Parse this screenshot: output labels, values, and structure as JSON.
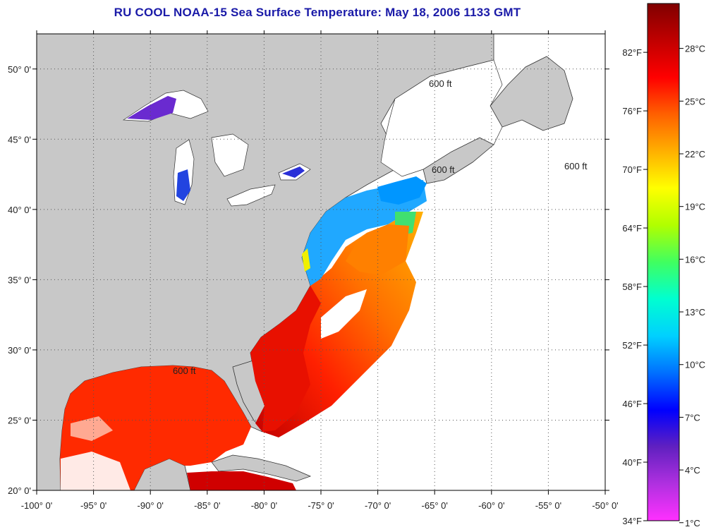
{
  "title": "RU COOL  NOAA-15  Sea Surface Temperature:  May 18, 2006 1133 GMT",
  "map": {
    "lon_range": [
      -100,
      -50
    ],
    "lat_range": [
      20,
      52.5
    ],
    "lat_labels": [
      "20° 0'",
      "25° 0'",
      "30° 0'",
      "35° 0'",
      "40° 0'",
      "45° 0'",
      "50° 0'"
    ],
    "lat_values": [
      20,
      25,
      30,
      35,
      40,
      45,
      50
    ],
    "lon_labels": [
      "-100° 0'",
      "-95° 0'",
      "-90° 0'",
      "-85° 0'",
      "-80° 0'",
      "-75° 0'",
      "-70° 0'",
      "-65° 0'",
      "-60° 0'",
      "-55° 0'",
      "-50° 0'"
    ],
    "lon_values": [
      -100,
      -95,
      -90,
      -85,
      -80,
      -75,
      -70,
      -65,
      -60,
      -55,
      -50
    ],
    "contour_label": "600 ft",
    "grid": "dotted",
    "land_color": "#c8c8c8",
    "no_data_color": "#ffffff"
  },
  "colorbar": {
    "fahrenheit_labels": [
      "34°F",
      "40°F",
      "46°F",
      "52°F",
      "58°F",
      "64°F",
      "70°F",
      "76°F",
      "82°F"
    ],
    "fahrenheit_values": [
      34,
      40,
      46,
      52,
      58,
      64,
      70,
      76,
      82
    ],
    "celsius_labels": [
      "1°C",
      "4°C",
      "7°C",
      "10°C",
      "13°C",
      "16°C",
      "19°C",
      "22°C",
      "25°C",
      "28°C"
    ],
    "celsius_values": [
      1,
      4,
      7,
      10,
      13,
      16,
      19,
      22,
      25,
      28
    ],
    "range_f": [
      34,
      87
    ],
    "stops": [
      "#ff30ff",
      "#b030e0",
      "#6020c0",
      "#0000ff",
      "#0070ff",
      "#00d0ff",
      "#00ffd0",
      "#40ff60",
      "#b0ff00",
      "#ffff00",
      "#ffb000",
      "#ff6000",
      "#ff0000",
      "#c00000",
      "#800000"
    ]
  }
}
